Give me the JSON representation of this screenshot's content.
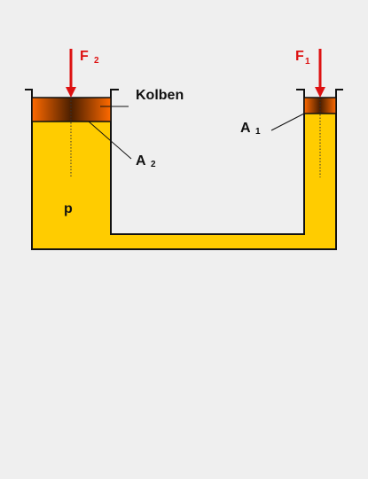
{
  "diagram": {
    "labels": {
      "f2_main": "F",
      "f2_sub": "2",
      "f1_main": "F",
      "f1_sub": "1",
      "kolben": "Kolben",
      "a2_main": "A",
      "a2_sub": "2",
      "a1_main": "A",
      "a1_sub": "1",
      "pressure": "p"
    },
    "colors": {
      "background": "#efefef",
      "fluid": "#ffcc00",
      "outline": "#111111",
      "force_arrow": "#dd1111",
      "piston_dark": "#4a1e00",
      "piston_light": "#ff6a00"
    }
  }
}
